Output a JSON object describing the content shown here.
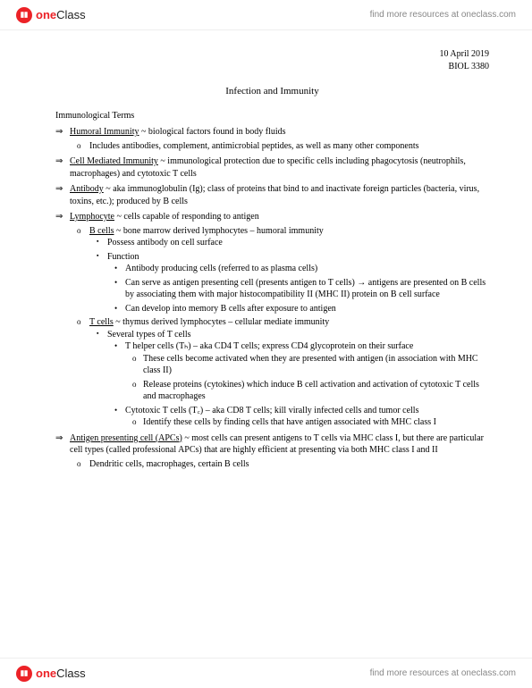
{
  "brand": {
    "one": "one",
    "class": "Class",
    "tagline": "find more resources at oneclass.com"
  },
  "meta": {
    "date": "10 April 2019",
    "course": "BIOL 3380"
  },
  "title": "Infection and Immunity",
  "sectionHead": "Immunological Terms",
  "terms": [
    {
      "name": "Humoral Immunity",
      "def": " ~ biological factors found in body fluids",
      "subs": [
        {
          "text": "Includes antibodies, complement, antimicrobial peptides, as well as many other components"
        }
      ]
    },
    {
      "name": "Cell Mediated Immunity",
      "def": " ~ immunological protection due to specific cells including phagocytosis (neutrophils, macrophages) and cytotoxic T cells"
    },
    {
      "name": "Antibody",
      "def": " ~ aka immunoglobulin (Ig); class of proteins that bind to and inactivate foreign particles (bacteria, virus, toxins, etc.); produced by B cells"
    },
    {
      "name": "Lymphocyte",
      "def": " ~ cells capable of responding to antigen",
      "subs": [
        {
          "uname": "B cells",
          "utext": " ~ bone marrow derived lymphocytes – humoral immunity",
          "l3": [
            {
              "text": "Possess antibody on cell surface"
            },
            {
              "text": "Function",
              "l4": [
                {
                  "text": "Antibody producing cells (referred to as plasma cells)"
                },
                {
                  "text": "Can serve as antigen presenting cell (presents antigen to T cells) → antigens are presented on B cells by associating them with major histocompatibility II (MHC II) protein on B cell surface"
                },
                {
                  "text": "Can develop into memory B cells after exposure to antigen"
                }
              ]
            }
          ]
        },
        {
          "uname": "T cells",
          "utext": " ~ thymus derived lymphocytes – cellular mediate immunity",
          "l3": [
            {
              "text": "Several types of T cells",
              "l4": [
                {
                  "text": "T helper cells (Tₕ) – aka CD4 T cells; express CD4 glycoprotein on their surface",
                  "l5": [
                    {
                      "text": "These cells become activated when they are presented with antigen (in association with MHC class II)"
                    },
                    {
                      "text": "Release proteins (cytokines) which induce B cell activation and activation of cytotoxic T cells and macrophages"
                    }
                  ]
                },
                {
                  "text": "Cytotoxic T cells (T꜀) – aka CD8 T cells; kill virally infected cells and tumor cells",
                  "l5": [
                    {
                      "text": "Identify these cells by finding cells that have antigen associated with MHC class I"
                    }
                  ]
                }
              ]
            }
          ]
        }
      ]
    },
    {
      "name": "Antigen presenting cell (APCs)",
      "def": " ~ most cells can present antigens to T cells via MHC class I, but there are particular cell types (called professional APCs) that are highly efficient at presenting via both MHC class I and II",
      "subs": [
        {
          "text": "Dendritic cells, macrophages, certain B cells"
        }
      ]
    }
  ]
}
